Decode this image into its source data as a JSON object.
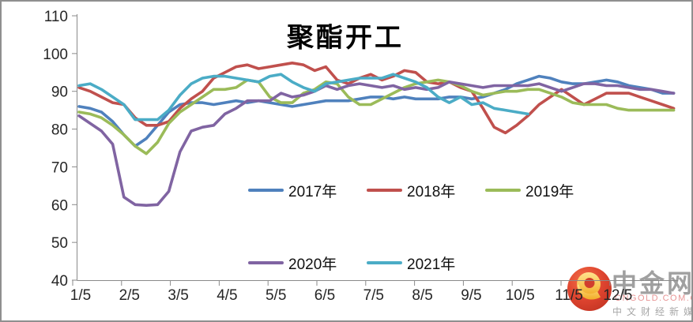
{
  "title": "聚酯开工",
  "watermark": {
    "brand": "中金网",
    "domain": "CNGOLD.COM.CN",
    "tagline": "中文财经新媒体"
  },
  "chart_data": {
    "type": "line",
    "title": "聚酯开工",
    "sampling": "weekly",
    "grid": false,
    "legend_position": "inside-bottom-center, two rows",
    "x_axis": {
      "tick_labels": [
        "1/5",
        "2/5",
        "3/5",
        "4/5",
        "5/5",
        "6/5",
        "7/5",
        "8/5",
        "9/5",
        "10/5",
        "11/5",
        "12/5"
      ]
    },
    "y_axis": {
      "min": 40,
      "max": 110,
      "tick_step": 10,
      "tick_labels": [
        "110",
        "100",
        "90",
        "80",
        "70",
        "60",
        "50",
        "40"
      ]
    },
    "series": [
      {
        "name": "2017年",
        "color": "#4F81BD",
        "weekly_values": [
          86,
          85.5,
          84.5,
          82,
          78.5,
          75.5,
          77.5,
          81,
          84.5,
          86.5,
          87,
          87,
          86.5,
          87,
          87.5,
          87,
          87.5,
          87,
          86.5,
          86,
          86.5,
          87,
          87.5,
          87.5,
          87.5,
          88,
          88.5,
          88.5,
          88,
          88.5,
          88,
          88,
          88,
          88.5,
          88.5,
          88,
          88.5,
          89.5,
          90.5,
          92,
          93,
          94,
          93.5,
          92.5,
          92,
          92,
          92.5,
          93,
          92.5,
          91.5,
          91,
          90.5,
          89.5,
          89.5
        ]
      },
      {
        "name": "2018年",
        "color": "#C0504D",
        "weekly_values": [
          91,
          90,
          88.5,
          87,
          86.5,
          83,
          81,
          81,
          82,
          85.5,
          88,
          90,
          93.5,
          95,
          96.5,
          97,
          96,
          96.5,
          97,
          97.5,
          97,
          95.5,
          96.5,
          93,
          92,
          93.5,
          94.5,
          93,
          94,
          95.5,
          95,
          92.5,
          92,
          92.5,
          91,
          90,
          85.5,
          80.5,
          79,
          81,
          83.5,
          86.5,
          88.5,
          90.5,
          88.5,
          86.5,
          88,
          89.5,
          89.5,
          89.5,
          88.5,
          87.5,
          86.5,
          85.5
        ]
      },
      {
        "name": "2019年",
        "color": "#9BBB59",
        "weekly_values": [
          84.5,
          84,
          83,
          81,
          78.5,
          75.5,
          73.5,
          76.5,
          81.5,
          84.5,
          86.5,
          88.5,
          90.5,
          90.5,
          91,
          93,
          92.5,
          88.5,
          87,
          87,
          89.5,
          90.5,
          92.5,
          92,
          88.5,
          86.5,
          86.5,
          88,
          89.5,
          91,
          92,
          92.5,
          93,
          92.5,
          91.5,
          90,
          89,
          89.5,
          90,
          90,
          90.5,
          90.5,
          89.5,
          88.5,
          87,
          86.5,
          86.5,
          86.5,
          85.5,
          85,
          85,
          85,
          85,
          85
        ]
      },
      {
        "name": "2020年",
        "color": "#8064A2",
        "weekly_values": [
          83.5,
          81.5,
          79.5,
          76,
          62,
          60,
          59.8,
          60,
          63.5,
          74,
          79.5,
          80.5,
          81,
          84,
          85.5,
          87.5,
          87.5,
          87.5,
          89.5,
          88.5,
          89,
          90,
          91.5,
          90.5,
          91.5,
          92,
          91.5,
          91,
          91.5,
          90.5,
          91,
          90.5,
          91,
          92.5,
          92,
          91.5,
          91,
          91.5,
          91.5,
          91.5,
          91.5,
          92,
          91,
          90,
          91,
          92,
          92,
          91.5,
          91.5,
          91,
          90.5,
          90.5,
          90,
          89.5
        ]
      },
      {
        "name": "2021年",
        "color": "#4BACC6",
        "weekly_values": [
          91.5,
          92,
          90.5,
          88.5,
          86.5,
          82.5,
          82.5,
          82.5,
          85,
          89,
          92,
          93.5,
          94,
          94,
          93.5,
          93,
          92.5,
          94,
          94.5,
          92.5,
          91,
          90,
          92,
          92.5,
          93,
          93.5,
          93.5,
          93.5,
          94.5,
          93.5,
          92.5,
          91,
          88.5,
          87,
          88.5,
          86.5,
          87,
          85.5,
          85,
          84.5,
          84
        ]
      }
    ]
  }
}
